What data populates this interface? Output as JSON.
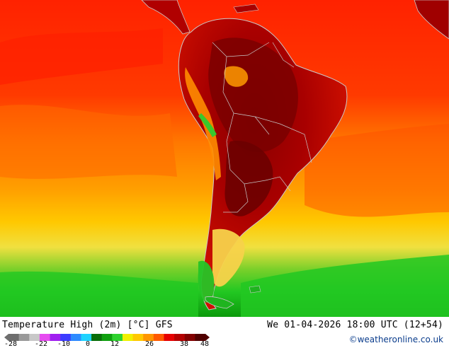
{
  "map": {
    "title": "Temperature High (2m) [°C] GFS",
    "datetime": "We 01-04-2026 18:00 UTC (12+54)",
    "credit": "©weatheronline.co.uk"
  },
  "legend": {
    "ticks": [
      "-28",
      "-22",
      "-10",
      "0",
      "12",
      "26",
      "38",
      "48"
    ],
    "colors": [
      "#6e6e6e",
      "#9a9a9a",
      "#c8c8c8",
      "#e64bf0",
      "#a020f0",
      "#3c3cff",
      "#2e8bff",
      "#1fd2ff",
      "#0a6e0a",
      "#0fa00f",
      "#2ed22e",
      "#f0f000",
      "#ffc800",
      "#ff9600",
      "#ff5a00",
      "#e60000",
      "#b40000",
      "#820000",
      "#500000"
    ]
  },
  "colors": {
    "ocean_green": "#22cc22",
    "ocean_yellow": "#f2e04a",
    "ocean_orange": "#ff9a00",
    "ocean_red": "#ff2a00",
    "land_hot": "#9a0000",
    "land_dark": "#700000",
    "border": "#c8c8c8"
  }
}
